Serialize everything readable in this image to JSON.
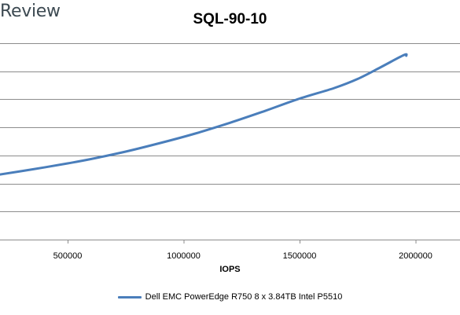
{
  "brand": {
    "text": "Review"
  },
  "chart_data": {
    "type": "line",
    "title": "SQL-90-10",
    "xlabel": "IOPS",
    "ylabel": "",
    "xlim": [
      200000,
      2000000
    ],
    "x_ticks": [
      500000,
      1000000,
      1500000,
      2000000
    ],
    "x_tick_labels": [
      "500000",
      "1000000",
      "1500000",
      "2000000"
    ],
    "grid": "horizontal",
    "legend_position": "bottom",
    "series": [
      {
        "name": "Dell EMC PowerEdge R750 8 x 3.84TB Intel P5510",
        "color": "#4a7ebb",
        "x": [
          200000,
          350000,
          500000,
          600000,
          750000,
          900000,
          1050000,
          1200000,
          1350000,
          1500000,
          1650000,
          1750000,
          1850000,
          1950000,
          1960000
        ],
        "y": [
          3.3,
          3.58,
          3.88,
          4.1,
          4.48,
          4.92,
          5.4,
          5.95,
          6.55,
          7.18,
          7.72,
          8.18,
          8.78,
          9.4,
          9.36
        ]
      }
    ]
  }
}
